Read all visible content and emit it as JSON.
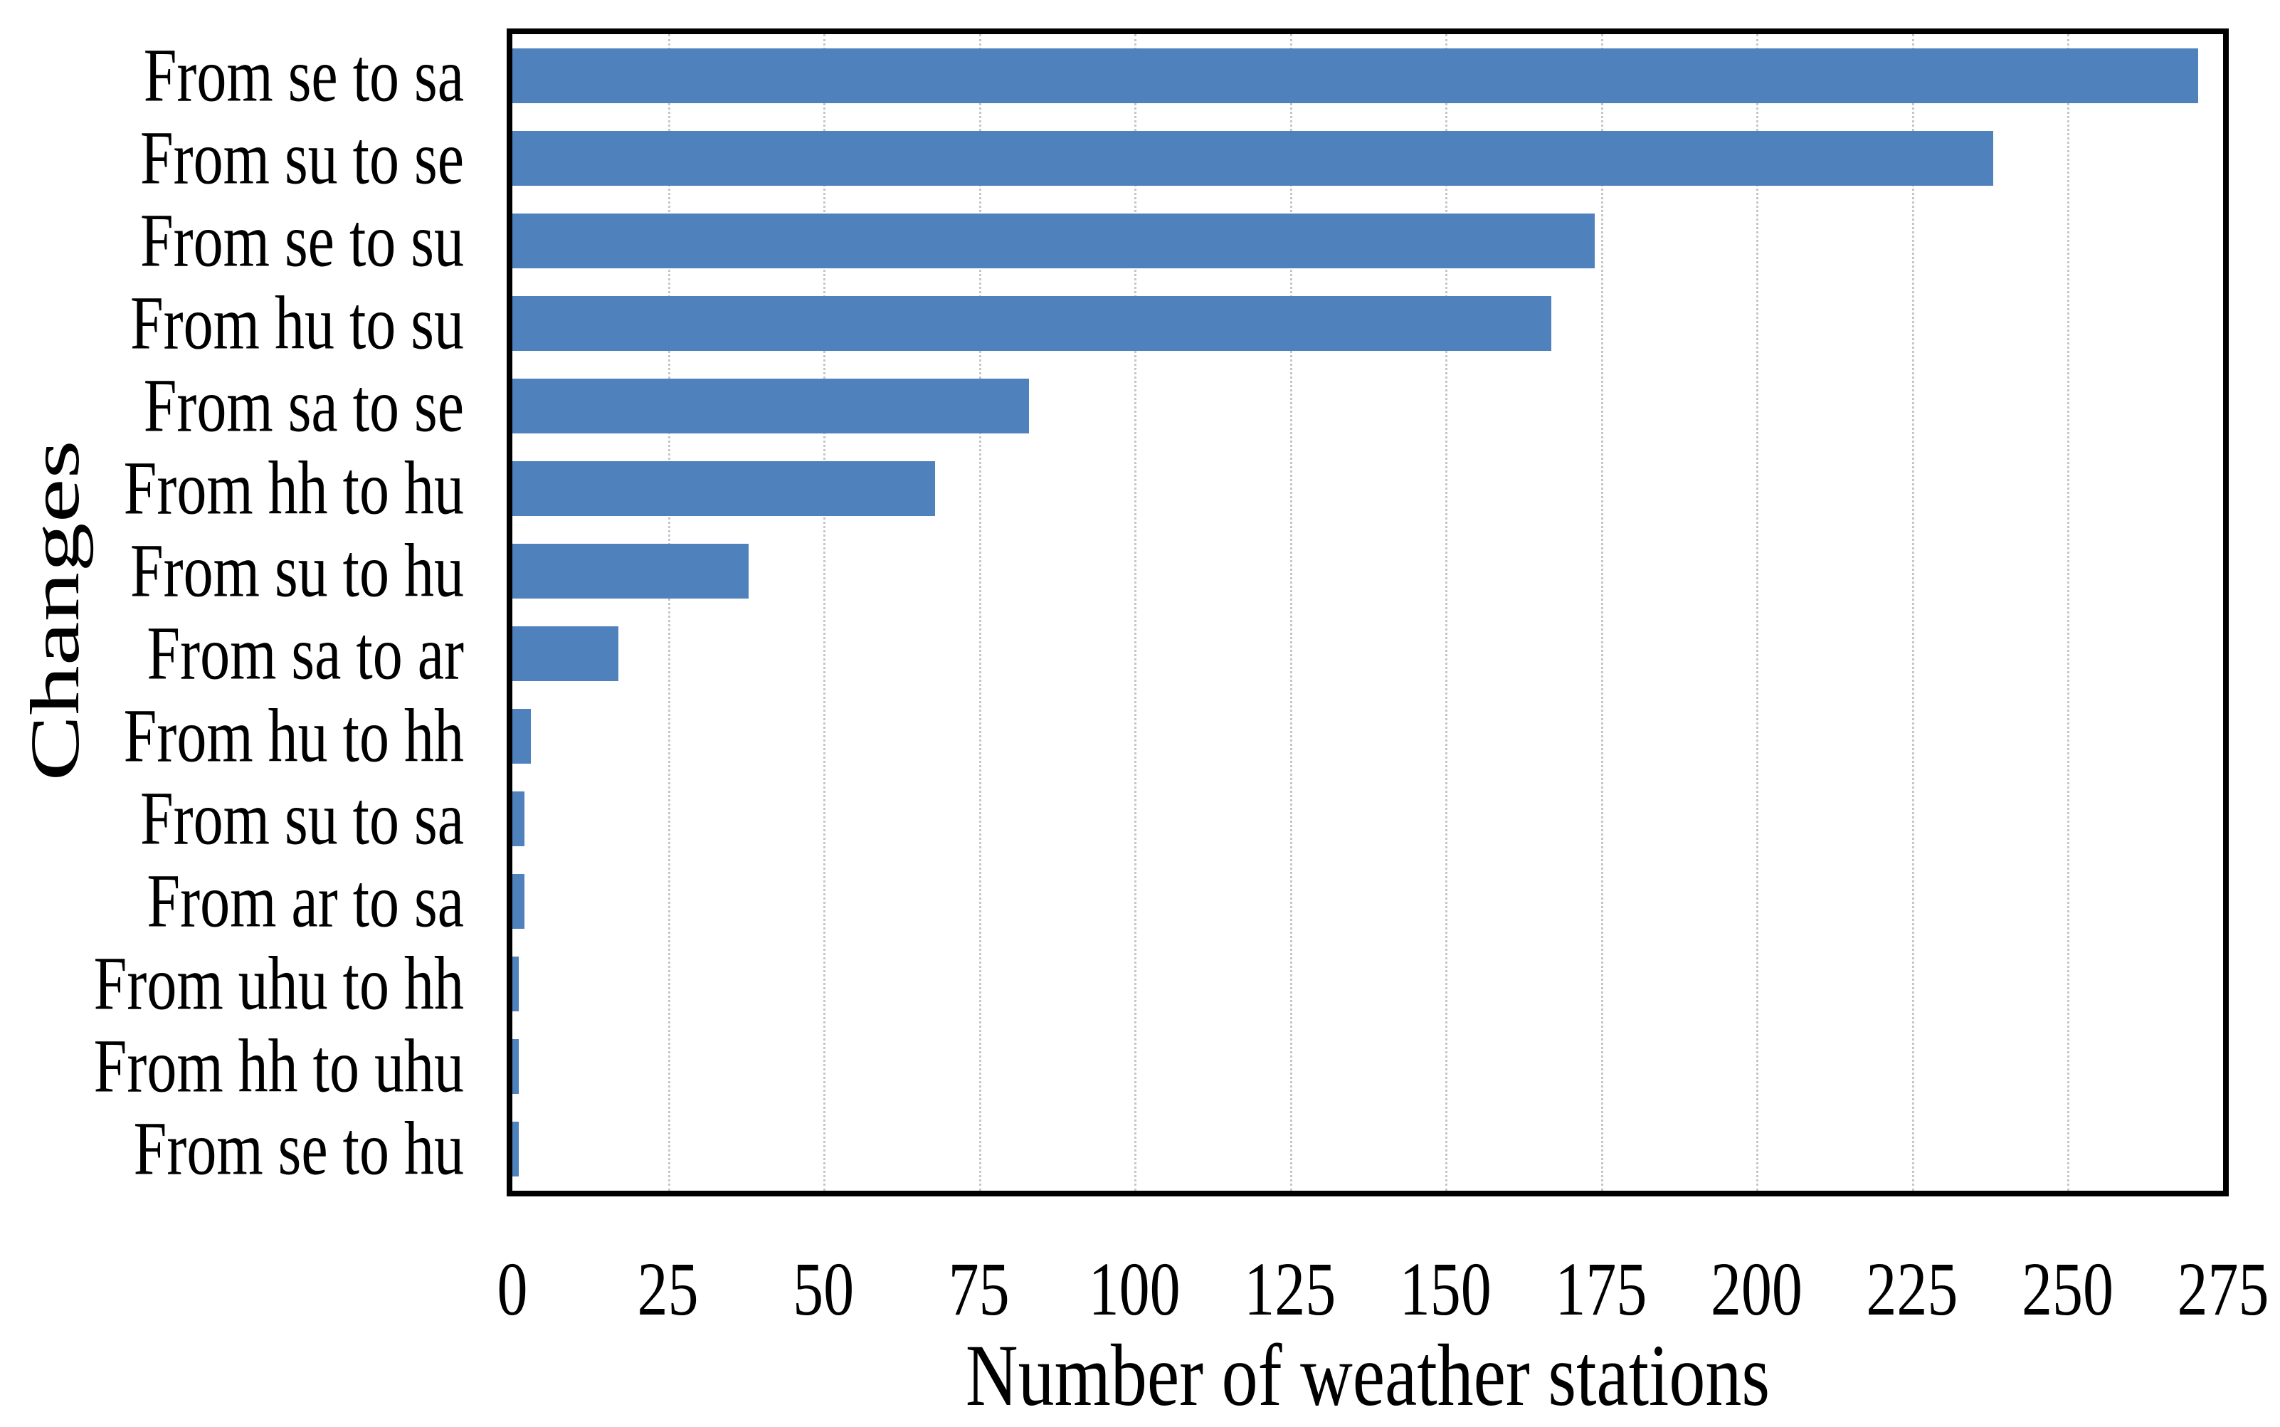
{
  "chart_data": {
    "type": "bar",
    "orientation": "horizontal",
    "title": "",
    "categories": [
      "From se to sa",
      "From su to se",
      "From se to su",
      "From hu to su",
      "From sa to se",
      "From hh to hu",
      "From su to hu",
      "From sa to ar",
      "From hu to hh",
      "From su to sa",
      "From ar to sa",
      "From uhu to hh",
      "From hh to uhu",
      "From se to hu"
    ],
    "values": [
      271,
      238,
      174,
      167,
      83,
      68,
      38,
      17,
      3,
      2,
      2,
      1,
      1,
      1
    ],
    "xlabel": "Number of weather stations",
    "ylabel": "Changes",
    "xlim": [
      0,
      275
    ],
    "x_ticks": [
      0,
      25,
      50,
      75,
      100,
      125,
      150,
      175,
      200,
      225,
      250,
      275
    ],
    "grid": "vertical-dotted",
    "legend": "none",
    "colors": {
      "bar": "#4F81BD",
      "gridline": "#c6c6c6",
      "axis_border": "#000000",
      "text": "#000000",
      "background": "#ffffff"
    }
  }
}
